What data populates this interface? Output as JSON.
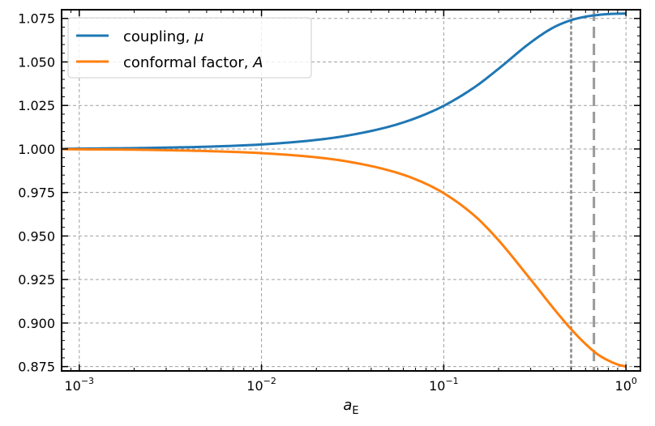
{
  "chart_data": {
    "type": "line",
    "x_scale": "log",
    "xlim": [
      0.0008,
      1.2
    ],
    "ylim": [
      0.8725,
      1.08
    ],
    "xlabel": {
      "base": "a",
      "subscript": "E"
    },
    "x_ticks": [
      {
        "value": 0.001,
        "base": "10",
        "exp": "−3"
      },
      {
        "value": 0.01,
        "base": "10",
        "exp": "−2"
      },
      {
        "value": 0.1,
        "base": "10",
        "exp": "−1"
      },
      {
        "value": 1,
        "base": "10",
        "exp": "0"
      }
    ],
    "y_ticks": [
      "0.875",
      "0.900",
      "0.925",
      "0.950",
      "0.975",
      "1.000",
      "1.025",
      "1.050",
      "1.075"
    ],
    "grid": true,
    "legend_position": "top-left",
    "series": [
      {
        "name": "coupling, ",
        "name_symbol": "μ",
        "color": "#1f77b4",
        "x": [
          0.0008,
          0.001,
          0.002,
          0.003,
          0.005,
          0.01,
          0.02,
          0.03,
          0.05,
          0.07,
          0.1,
          0.15,
          0.2,
          0.3,
          0.4,
          0.5,
          0.6,
          0.7,
          0.8,
          0.9,
          1.0
        ],
        "y": [
          1.0001,
          1.0002,
          1.0005,
          1.0008,
          1.0013,
          1.0026,
          1.0052,
          1.0078,
          1.0128,
          1.0177,
          1.0248,
          1.036,
          1.0461,
          1.0612,
          1.0698,
          1.074,
          1.076,
          1.077,
          1.0775,
          1.0777,
          1.0778
        ]
      },
      {
        "name": "conformal factor, ",
        "name_symbol": "A",
        "color": "#ff7f0e",
        "x": [
          0.0008,
          0.001,
          0.002,
          0.003,
          0.005,
          0.01,
          0.02,
          0.03,
          0.05,
          0.07,
          0.1,
          0.15,
          0.2,
          0.3,
          0.4,
          0.5,
          0.6,
          0.7,
          0.8,
          0.9,
          1.0
        ],
        "y": [
          0.9999,
          0.9998,
          0.9996,
          0.9993,
          0.9988,
          0.9976,
          0.9952,
          0.9927,
          0.9877,
          0.9826,
          0.9746,
          0.961,
          0.9475,
          0.925,
          0.9085,
          0.8965,
          0.888,
          0.882,
          0.8785,
          0.8762,
          0.875
        ]
      }
    ],
    "vlines": [
      {
        "x": 0.5,
        "style": "dotted",
        "color": "#999999"
      },
      {
        "x": 0.667,
        "style": "dashed",
        "color": "#999999"
      }
    ]
  }
}
